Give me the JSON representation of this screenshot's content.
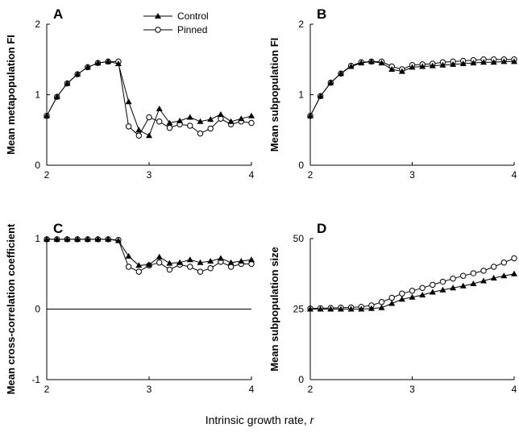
{
  "figure": {
    "shared_xlabel": "Intrinsic growth rate,",
    "shared_xlabel_var": "r"
  },
  "chart_data": [
    {
      "type": "line",
      "panel_label": "A",
      "ylabel": "Mean metapopulation FI",
      "xlim": [
        2,
        4
      ],
      "ylim": [
        0,
        2
      ],
      "xticks": [
        2,
        3,
        4
      ],
      "yticks": [
        0,
        1,
        2
      ],
      "x": [
        2.0,
        2.1,
        2.2,
        2.3,
        2.4,
        2.5,
        2.6,
        2.7,
        2.8,
        2.9,
        3.0,
        3.1,
        3.2,
        3.3,
        3.4,
        3.5,
        3.6,
        3.7,
        3.8,
        3.9,
        4.0
      ],
      "legend": {
        "position": "top-right"
      },
      "series": [
        {
          "name": "Control",
          "marker": "triangle-filled",
          "values": [
            0.7,
            0.97,
            1.16,
            1.29,
            1.39,
            1.45,
            1.47,
            1.44,
            0.9,
            0.5,
            0.42,
            0.8,
            0.6,
            0.63,
            0.68,
            0.62,
            0.65,
            0.72,
            0.62,
            0.66,
            0.7
          ]
        },
        {
          "name": "Pinned",
          "marker": "circle-open",
          "values": [
            0.7,
            0.97,
            1.16,
            1.29,
            1.39,
            1.45,
            1.47,
            1.47,
            0.55,
            0.42,
            0.68,
            0.62,
            0.53,
            0.58,
            0.56,
            0.45,
            0.52,
            0.66,
            0.58,
            0.62,
            0.6
          ]
        }
      ]
    },
    {
      "type": "line",
      "panel_label": "B",
      "ylabel": "Mean subpopulation FI",
      "xlim": [
        2,
        4
      ],
      "ylim": [
        0,
        2
      ],
      "xticks": [
        2,
        3,
        4
      ],
      "yticks": [
        0,
        1,
        2
      ],
      "x": [
        2.0,
        2.1,
        2.2,
        2.3,
        2.4,
        2.5,
        2.6,
        2.7,
        2.8,
        2.9,
        3.0,
        3.1,
        3.2,
        3.3,
        3.4,
        3.5,
        3.6,
        3.7,
        3.8,
        3.9,
        4.0
      ],
      "series": [
        {
          "name": "Control",
          "marker": "triangle-filled",
          "values": [
            0.7,
            0.98,
            1.17,
            1.3,
            1.4,
            1.45,
            1.47,
            1.45,
            1.36,
            1.33,
            1.39,
            1.4,
            1.41,
            1.42,
            1.43,
            1.44,
            1.45,
            1.46,
            1.46,
            1.47,
            1.47
          ]
        },
        {
          "name": "Pinned",
          "marker": "circle-open",
          "values": [
            0.7,
            0.98,
            1.17,
            1.3,
            1.41,
            1.46,
            1.47,
            1.47,
            1.4,
            1.36,
            1.42,
            1.43,
            1.44,
            1.46,
            1.47,
            1.48,
            1.49,
            1.5,
            1.5,
            1.5,
            1.5
          ]
        }
      ]
    },
    {
      "type": "line",
      "panel_label": "C",
      "ylabel": "Mean cross-correlation coefficient",
      "xlim": [
        2,
        4
      ],
      "ylim": [
        -1,
        1
      ],
      "xticks": [
        2,
        3,
        4
      ],
      "yticks": [
        -1,
        0,
        1
      ],
      "zero_line": true,
      "x": [
        2.0,
        2.1,
        2.2,
        2.3,
        2.4,
        2.5,
        2.6,
        2.7,
        2.8,
        2.9,
        3.0,
        3.1,
        3.2,
        3.3,
        3.4,
        3.5,
        3.6,
        3.7,
        3.8,
        3.9,
        4.0
      ],
      "series": [
        {
          "name": "Control",
          "marker": "triangle-filled",
          "values": [
            0.99,
            0.99,
            0.99,
            0.99,
            0.99,
            0.99,
            0.99,
            0.97,
            0.75,
            0.62,
            0.63,
            0.74,
            0.65,
            0.66,
            0.7,
            0.66,
            0.68,
            0.72,
            0.66,
            0.68,
            0.7
          ]
        },
        {
          "name": "Pinned",
          "marker": "circle-open",
          "values": [
            0.99,
            0.99,
            0.99,
            0.99,
            0.99,
            0.99,
            0.99,
            0.98,
            0.6,
            0.53,
            0.62,
            0.66,
            0.56,
            0.63,
            0.6,
            0.53,
            0.58,
            0.67,
            0.6,
            0.64,
            0.64
          ]
        }
      ]
    },
    {
      "type": "line",
      "panel_label": "D",
      "ylabel": "Mean subpopulation size",
      "xlim": [
        2,
        4
      ],
      "ylim": [
        0,
        50
      ],
      "xticks": [
        2,
        3,
        4
      ],
      "yticks": [
        0,
        25,
        50
      ],
      "x": [
        2.0,
        2.1,
        2.2,
        2.3,
        2.4,
        2.5,
        2.6,
        2.7,
        2.8,
        2.9,
        3.0,
        3.1,
        3.2,
        3.3,
        3.4,
        3.5,
        3.6,
        3.7,
        3.8,
        3.9,
        4.0
      ],
      "series": [
        {
          "name": "Control",
          "marker": "triangle-filled",
          "values": [
            25.0,
            25.0,
            25.0,
            25.0,
            25.0,
            25.0,
            25.2,
            25.5,
            27.0,
            28.5,
            29.2,
            30.0,
            31.0,
            31.8,
            32.5,
            33.2,
            34.0,
            35.0,
            36.0,
            36.8,
            37.5
          ]
        },
        {
          "name": "Pinned",
          "marker": "circle-open",
          "values": [
            25.2,
            25.3,
            25.4,
            25.5,
            25.6,
            25.8,
            26.3,
            27.5,
            29.0,
            30.5,
            31.5,
            32.5,
            33.6,
            34.7,
            35.8,
            36.8,
            37.7,
            38.6,
            40.0,
            41.5,
            43.0
          ]
        }
      ]
    }
  ]
}
